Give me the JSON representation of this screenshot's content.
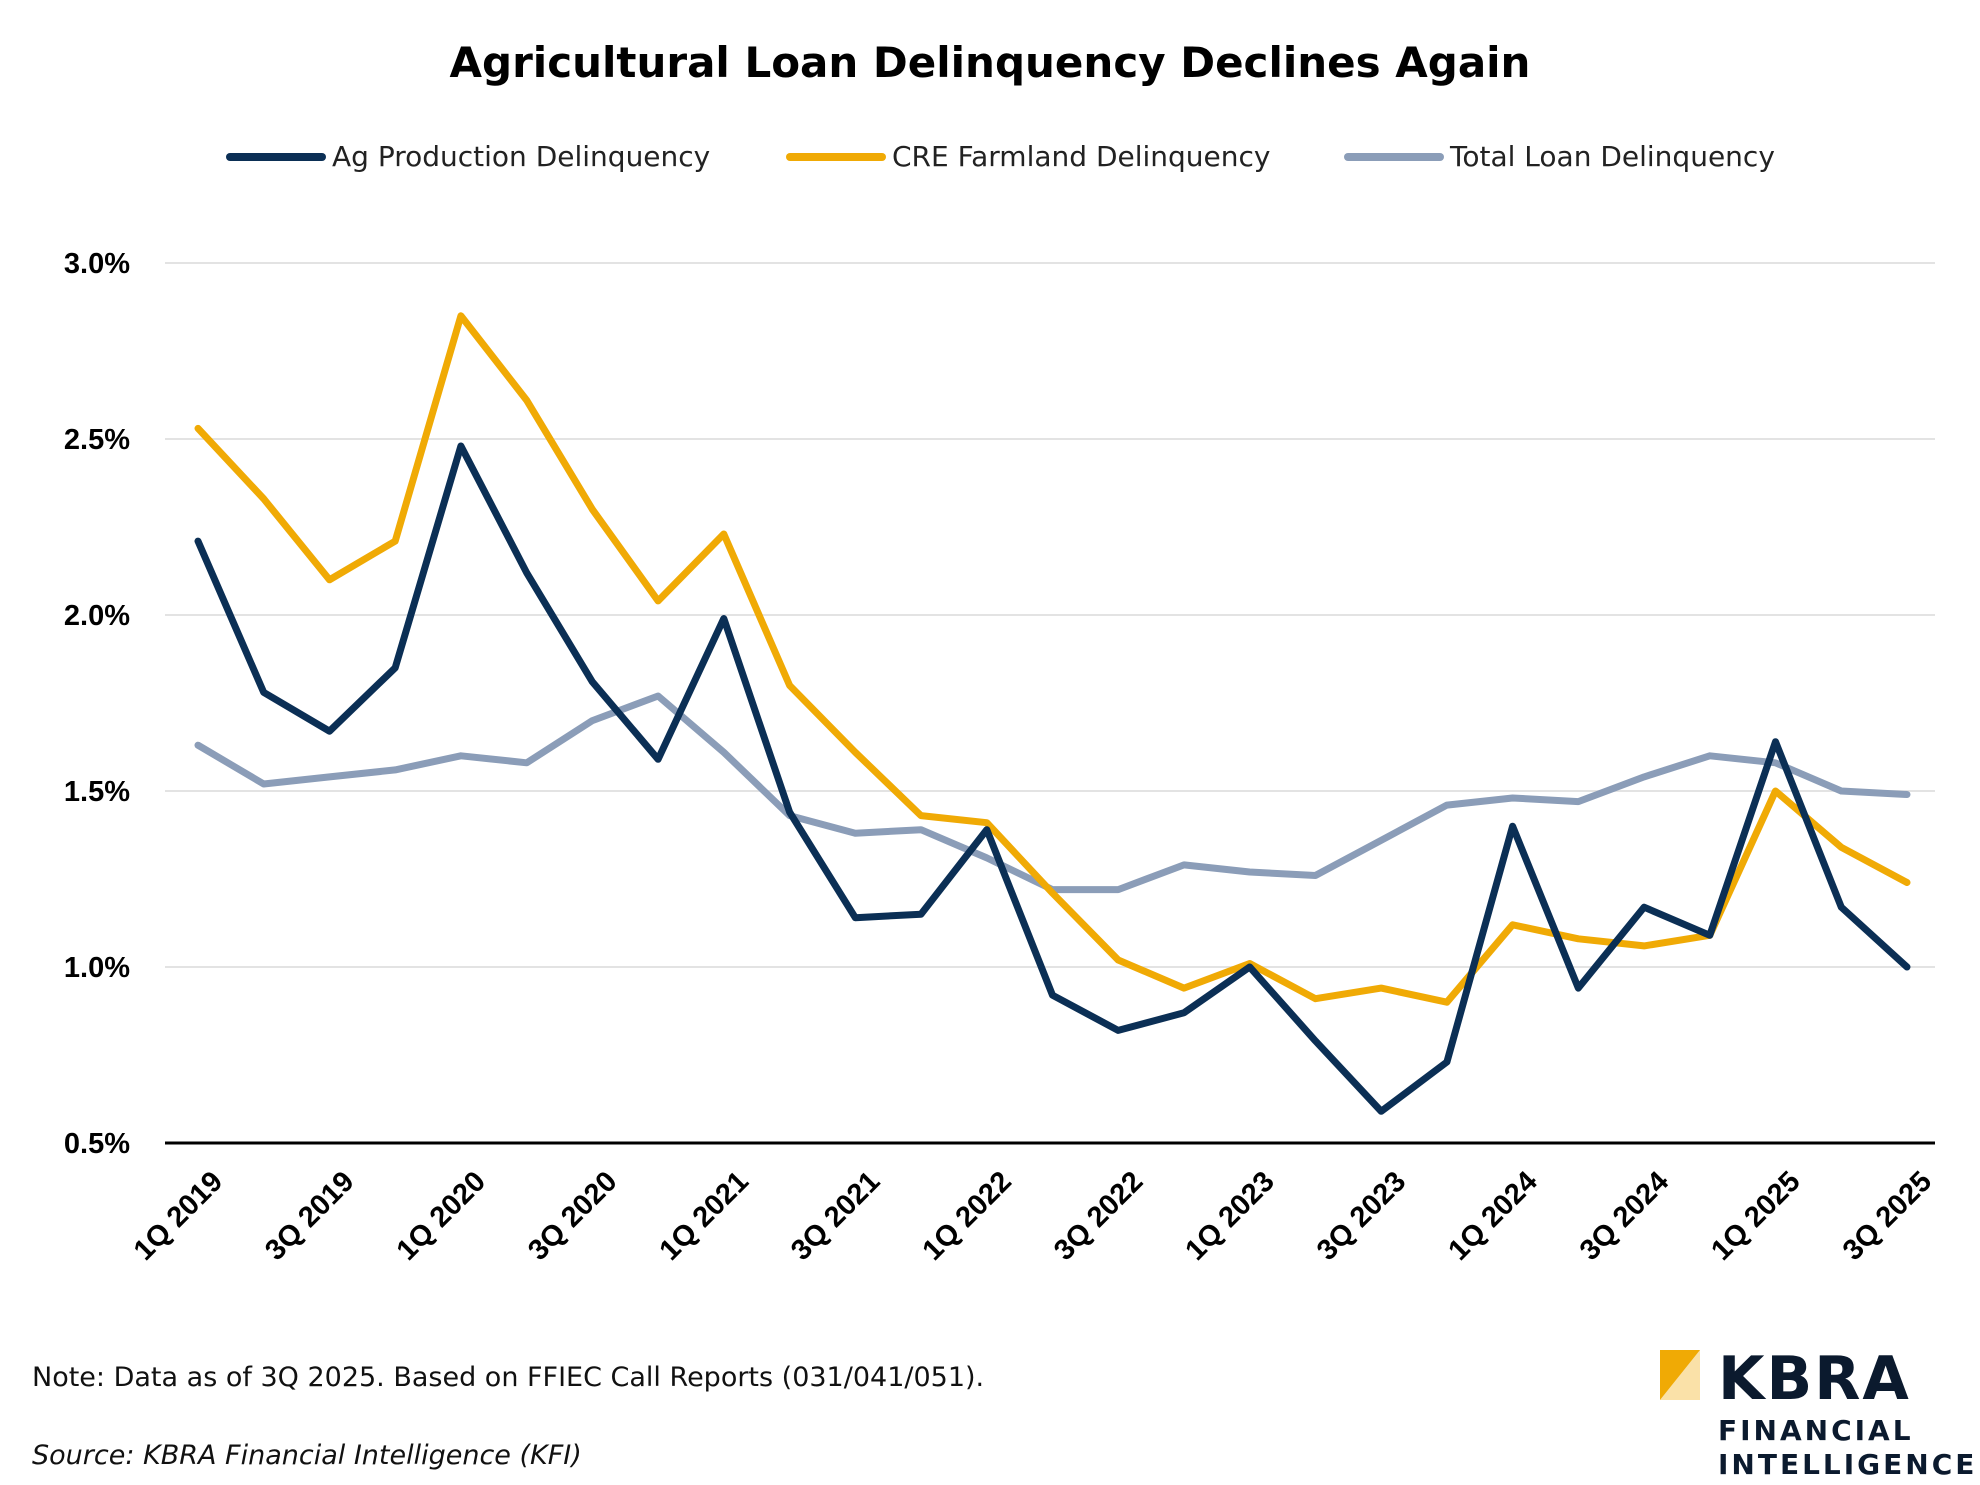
{
  "chart_data": {
    "type": "line",
    "title": "Agricultural Loan Delinquency Declines Again",
    "xlabel": "",
    "ylabel": "",
    "ylim": [
      0.005,
      0.03
    ],
    "yticks": [
      "0.5%",
      "1.0%",
      "1.5%",
      "2.0%",
      "2.5%",
      "3.0%"
    ],
    "ytick_values": [
      0.005,
      0.01,
      0.015,
      0.02,
      0.025,
      0.03
    ],
    "grid": true,
    "legend_position": "top",
    "categories": [
      "1Q 2019",
      "2Q 2019",
      "3Q 2019",
      "4Q 2019",
      "1Q 2020",
      "2Q 2020",
      "3Q 2020",
      "4Q 2020",
      "1Q 2021",
      "2Q 2021",
      "3Q 2021",
      "4Q 2021",
      "1Q 2022",
      "2Q 2022",
      "3Q 2022",
      "4Q 2022",
      "1Q 2023",
      "2Q 2023",
      "3Q 2023",
      "4Q 2023",
      "1Q 2024",
      "2Q 2024",
      "3Q 2024",
      "4Q 2024",
      "1Q 2025",
      "2Q 2025",
      "3Q 2025"
    ],
    "xtick_labels": [
      "1Q 2019",
      "",
      "3Q 2019",
      "",
      "1Q 2020",
      "",
      "3Q 2020",
      "",
      "1Q 2021",
      "",
      "3Q 2021",
      "",
      "1Q 2022",
      "",
      "3Q 2022",
      "",
      "1Q 2023",
      "",
      "3Q 2023",
      "",
      "1Q 2024",
      "",
      "3Q 2024",
      "",
      "1Q 2025",
      "",
      "3Q 2025"
    ],
    "series": [
      {
        "name": "Ag Production Delinquency",
        "color": "#0b2f55",
        "values": [
          0.0221,
          0.0178,
          0.0167,
          0.0185,
          0.0248,
          0.0212,
          0.0181,
          0.0159,
          0.0199,
          0.0144,
          0.0114,
          0.0115,
          0.0139,
          0.0092,
          0.0082,
          0.0087,
          0.01,
          0.0079,
          0.0059,
          0.0073,
          0.014,
          0.0094,
          0.0117,
          0.0109,
          0.0164,
          0.0117,
          0.01
        ]
      },
      {
        "name": "CRE Farmland Delinquency",
        "color": "#f0aa05",
        "values": [
          0.0253,
          0.0233,
          0.021,
          0.0221,
          0.0285,
          0.0261,
          0.023,
          0.0204,
          0.0223,
          0.018,
          0.0161,
          0.0143,
          0.0141,
          0.0121,
          0.0102,
          0.0094,
          0.0101,
          0.0091,
          0.0094,
          0.009,
          0.0112,
          0.0108,
          0.0106,
          0.0109,
          0.015,
          0.0134,
          0.0124
        ]
      },
      {
        "name": "Total Loan Delinquency",
        "color": "#8b9db8",
        "values": [
          0.0163,
          0.0152,
          0.0154,
          0.0156,
          0.016,
          0.0158,
          0.017,
          0.0177,
          0.0161,
          0.0143,
          0.0138,
          0.0139,
          0.0131,
          0.0122,
          0.0122,
          0.0129,
          0.0127,
          0.0126,
          0.0136,
          0.0146,
          0.0148,
          0.0147,
          0.0154,
          0.016,
          0.0158,
          0.015,
          0.0149
        ]
      }
    ]
  },
  "footer": {
    "note": "Note: Data as of 3Q 2025. Based on FFIEC Call Reports (031/041/051).",
    "source": "Source: KBRA Financial Intelligence (KFI)"
  },
  "logo": {
    "brand": "KBRA",
    "line1": "FINANCIAL",
    "line2": "INTELLIGENCE",
    "accent_color": "#f0aa05",
    "text_color": "#0b1a2e"
  }
}
